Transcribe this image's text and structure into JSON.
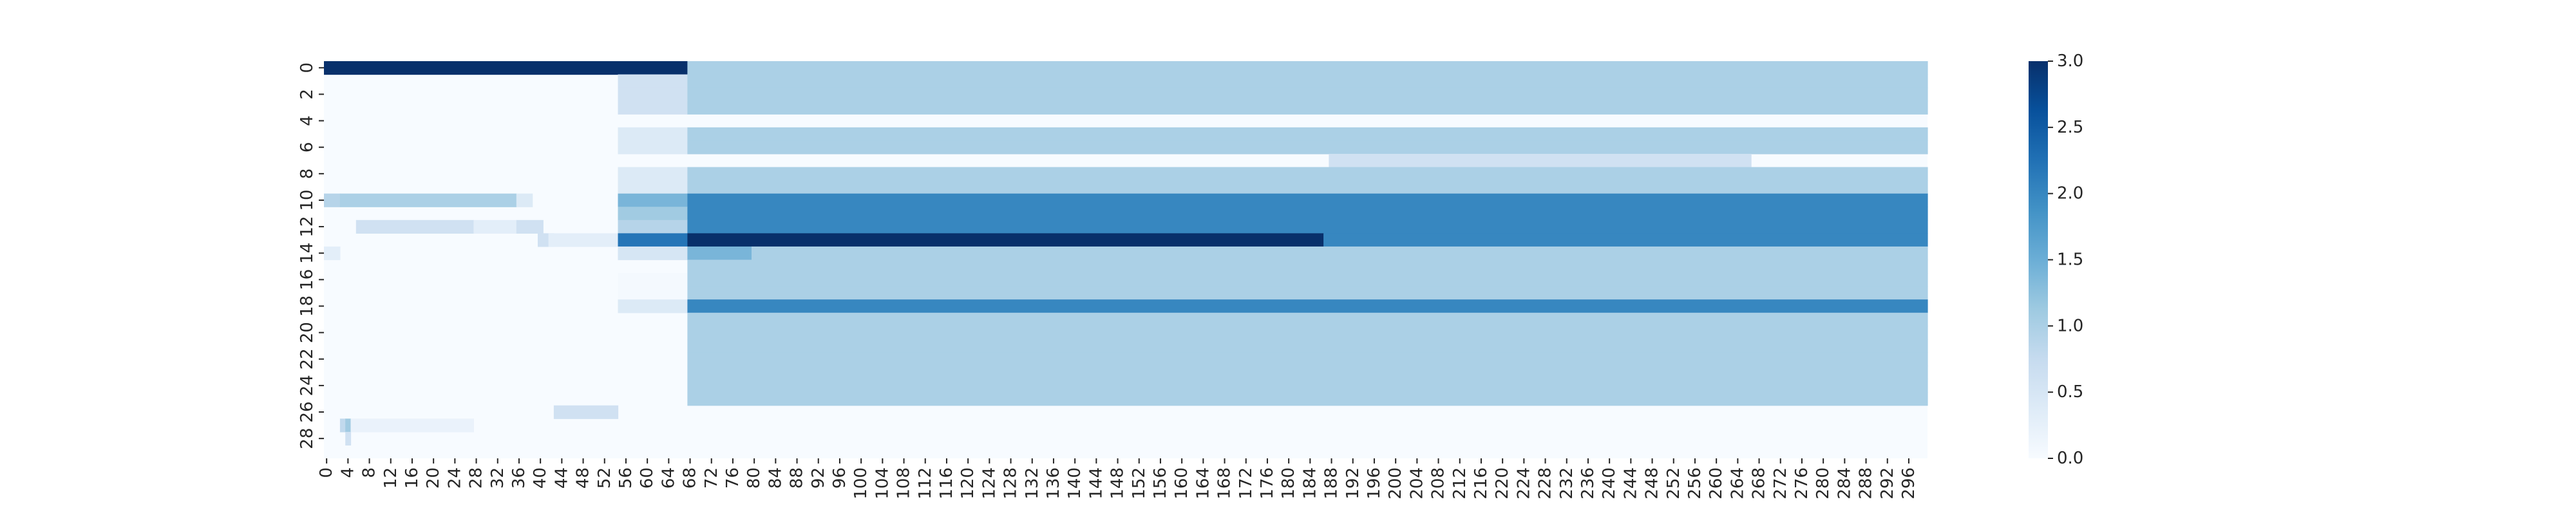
{
  "chart_data": {
    "type": "heatmap",
    "title": "",
    "xlabel": "",
    "ylabel": "",
    "n_cols": 300,
    "n_rows": 30,
    "x_tick_labels": [
      "0",
      "4",
      "8",
      "12",
      "16",
      "20",
      "24",
      "28",
      "32",
      "36",
      "40",
      "44",
      "48",
      "52",
      "56",
      "60",
      "64",
      "68",
      "72",
      "76",
      "80",
      "84",
      "88",
      "92",
      "96",
      "100",
      "104",
      "108",
      "112",
      "116",
      "120",
      "124",
      "128",
      "132",
      "136",
      "140",
      "144",
      "148",
      "152",
      "156",
      "160",
      "164",
      "168",
      "172",
      "176",
      "180",
      "184",
      "188",
      "192",
      "196",
      "200",
      "204",
      "208",
      "212",
      "216",
      "220",
      "224",
      "228",
      "232",
      "236",
      "240",
      "244",
      "248",
      "252",
      "256",
      "260",
      "264",
      "268",
      "272",
      "276",
      "280",
      "284",
      "288",
      "292",
      "296"
    ],
    "y_tick_labels": [
      "0",
      "2",
      "4",
      "6",
      "8",
      "10",
      "12",
      "14",
      "16",
      "18",
      "20",
      "22",
      "24",
      "26",
      "28"
    ],
    "colorbar": {
      "min": 0.0,
      "max": 3.0,
      "tick_labels": [
        "0.0",
        "0.5",
        "1.0",
        "1.5",
        "2.0",
        "2.5",
        "3.0"
      ],
      "colormap": "Blues",
      "stops": [
        "#f7fbff",
        "#deebf7",
        "#c6dbef",
        "#9ecae1",
        "#6baed6",
        "#4292c6",
        "#2171b5",
        "#08519c",
        "#08306b"
      ]
    },
    "background_value": 0.0,
    "segments": [
      {
        "row": 0,
        "from": 0,
        "to": 67,
        "value": 3.0
      },
      {
        "row": 0,
        "from": 68,
        "to": 299,
        "value": 1.0
      },
      {
        "row": 1,
        "from": 55,
        "to": 67,
        "value": 0.6
      },
      {
        "row": 1,
        "from": 68,
        "to": 299,
        "value": 1.0
      },
      {
        "row": 2,
        "from": 55,
        "to": 67,
        "value": 0.6
      },
      {
        "row": 2,
        "from": 68,
        "to": 299,
        "value": 1.0
      },
      {
        "row": 3,
        "from": 55,
        "to": 67,
        "value": 0.6
      },
      {
        "row": 3,
        "from": 68,
        "to": 299,
        "value": 1.0
      },
      {
        "row": 5,
        "from": 55,
        "to": 67,
        "value": 0.4
      },
      {
        "row": 5,
        "from": 68,
        "to": 299,
        "value": 1.0
      },
      {
        "row": 6,
        "from": 55,
        "to": 67,
        "value": 0.4
      },
      {
        "row": 6,
        "from": 68,
        "to": 299,
        "value": 1.0
      },
      {
        "row": 7,
        "from": 188,
        "to": 266,
        "value": 0.6
      },
      {
        "row": 8,
        "from": 55,
        "to": 67,
        "value": 0.4
      },
      {
        "row": 8,
        "from": 68,
        "to": 299,
        "value": 1.0
      },
      {
        "row": 9,
        "from": 55,
        "to": 67,
        "value": 0.4
      },
      {
        "row": 9,
        "from": 68,
        "to": 299,
        "value": 1.0
      },
      {
        "row": 10,
        "from": 0,
        "to": 2,
        "value": 0.9
      },
      {
        "row": 10,
        "from": 3,
        "to": 35,
        "value": 1.0
      },
      {
        "row": 10,
        "from": 36,
        "to": 38,
        "value": 0.4
      },
      {
        "row": 10,
        "from": 55,
        "to": 67,
        "value": 1.4
      },
      {
        "row": 10,
        "from": 68,
        "to": 299,
        "value": 2.0
      },
      {
        "row": 11,
        "from": 55,
        "to": 67,
        "value": 1.1
      },
      {
        "row": 11,
        "from": 68,
        "to": 299,
        "value": 2.0
      },
      {
        "row": 12,
        "from": 6,
        "to": 27,
        "value": 0.6
      },
      {
        "row": 12,
        "from": 28,
        "to": 35,
        "value": 0.3
      },
      {
        "row": 12,
        "from": 36,
        "to": 40,
        "value": 0.6
      },
      {
        "row": 12,
        "from": 55,
        "to": 67,
        "value": 0.9
      },
      {
        "row": 12,
        "from": 68,
        "to": 299,
        "value": 2.0
      },
      {
        "row": 13,
        "from": 40,
        "to": 42,
        "value": 0.6
      },
      {
        "row": 13,
        "from": 42,
        "to": 54,
        "value": 0.3
      },
      {
        "row": 13,
        "from": 55,
        "to": 67,
        "value": 2.2
      },
      {
        "row": 13,
        "from": 68,
        "to": 186,
        "value": 3.0
      },
      {
        "row": 13,
        "from": 187,
        "to": 299,
        "value": 2.0
      },
      {
        "row": 14,
        "from": 0,
        "to": 2,
        "value": 0.3
      },
      {
        "row": 14,
        "from": 55,
        "to": 67,
        "value": 0.5
      },
      {
        "row": 14,
        "from": 68,
        "to": 79,
        "value": 1.4
      },
      {
        "row": 14,
        "from": 80,
        "to": 299,
        "value": 1.0
      },
      {
        "row": 15,
        "from": 68,
        "to": 299,
        "value": 1.0
      },
      {
        "row": 16,
        "from": 55,
        "to": 67,
        "value": 0.05
      },
      {
        "row": 16,
        "from": 68,
        "to": 299,
        "value": 1.0
      },
      {
        "row": 17,
        "from": 55,
        "to": 67,
        "value": 0.05
      },
      {
        "row": 17,
        "from": 68,
        "to": 299,
        "value": 1.0
      },
      {
        "row": 18,
        "from": 55,
        "to": 67,
        "value": 0.4
      },
      {
        "row": 18,
        "from": 68,
        "to": 299,
        "value": 2.0
      },
      {
        "row": 19,
        "from": 68,
        "to": 299,
        "value": 1.0
      },
      {
        "row": 20,
        "from": 68,
        "to": 299,
        "value": 1.0
      },
      {
        "row": 21,
        "from": 68,
        "to": 299,
        "value": 1.0
      },
      {
        "row": 22,
        "from": 68,
        "to": 299,
        "value": 1.0
      },
      {
        "row": 23,
        "from": 68,
        "to": 299,
        "value": 1.0
      },
      {
        "row": 24,
        "from": 68,
        "to": 299,
        "value": 1.0
      },
      {
        "row": 25,
        "from": 68,
        "to": 299,
        "value": 1.0
      },
      {
        "row": 26,
        "from": 43,
        "to": 54,
        "value": 0.6
      },
      {
        "row": 27,
        "from": 3,
        "to": 3,
        "value": 0.8
      },
      {
        "row": 27,
        "from": 4,
        "to": 4,
        "value": 1.1
      },
      {
        "row": 27,
        "from": 5,
        "to": 27,
        "value": 0.2
      },
      {
        "row": 28,
        "from": 4,
        "to": 4,
        "value": 0.6
      }
    ]
  }
}
